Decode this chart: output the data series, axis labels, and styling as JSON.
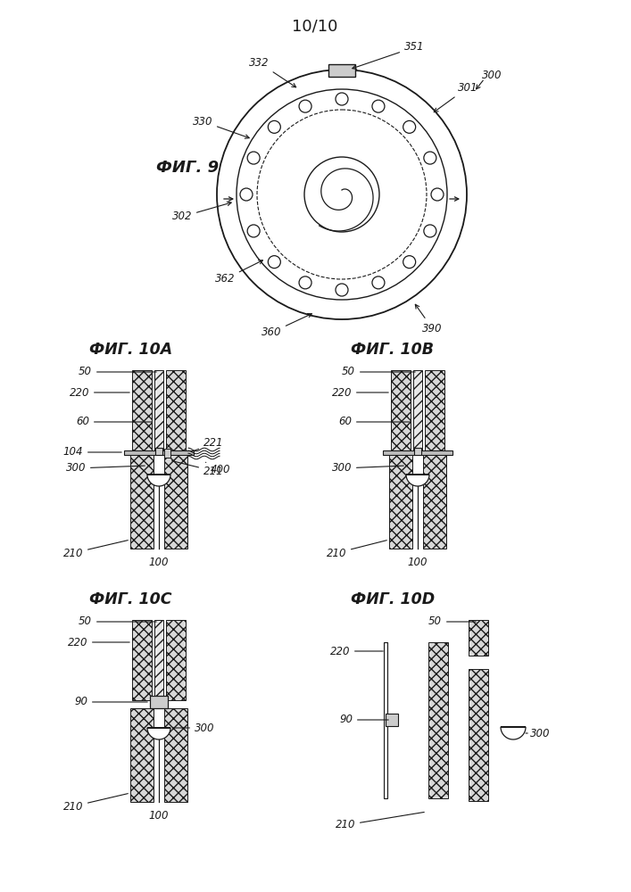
{
  "page_label": "10/10",
  "fig9_label": "ФИГ. 9",
  "fig10a_label": "ФИГ. 10А",
  "fig10b_label": "ФИГ. 10В",
  "fig10c_label": "ФИГ. 10С",
  "fig10d_label": "ФИГ. 10D",
  "bg_color": "#ffffff",
  "line_color": "#1a1a1a"
}
